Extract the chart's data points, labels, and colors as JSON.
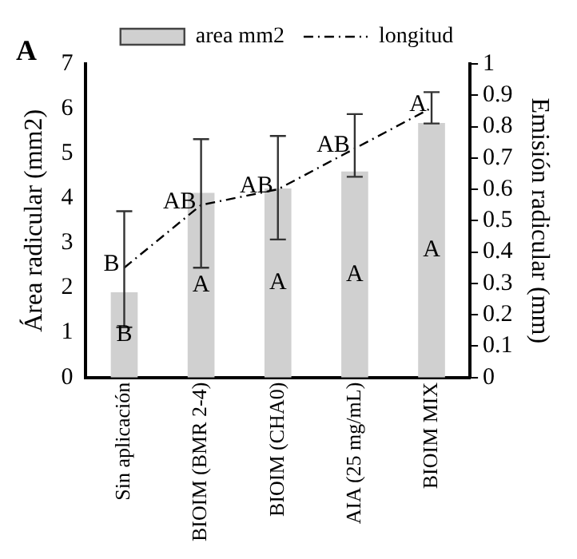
{
  "chart_data": {
    "type": "bar",
    "title": "A",
    "categories": [
      "Sin aplicación",
      "BIOIM (BMR 2-4)",
      "BIOIM (CHA0)",
      "AIA (25 mg/mL)",
      "BIOIM MIX"
    ],
    "ylabel": "Área radicular (mm2)",
    "y2label": "Emisión radicular (mm)",
    "ylim": [
      0,
      7
    ],
    "yticks": [
      0,
      1,
      2,
      3,
      4,
      5,
      6,
      7
    ],
    "y2lim": [
      0,
      1
    ],
    "y2ticks": [
      0,
      0.1,
      0.2,
      0.3,
      0.4,
      0.5,
      0.6,
      0.7,
      0.8,
      0.9,
      1
    ],
    "series": [
      {
        "name": "area mm2",
        "color": "#d0d0d0",
        "values": [
          1.9,
          4.12,
          4.22,
          4.6,
          5.68
        ],
        "value_labels": [
          "B",
          "A",
          "A",
          "A",
          "A"
        ]
      },
      {
        "name": "longitud",
        "type": "line",
        "axis": "y2",
        "color": "#000000",
        "line_style": "dashed",
        "marker": "none",
        "values": [
          0.35,
          0.55,
          0.6,
          0.73,
          0.86
        ],
        "value_labels": [
          "B",
          "AB",
          "AB",
          "AB",
          "A"
        ],
        "errors": [
          [
            0.16,
            0.53
          ],
          [
            0.35,
            0.76
          ],
          [
            0.44,
            0.77
          ],
          [
            0.64,
            0.84
          ],
          [
            0.81,
            0.91
          ]
        ]
      }
    ],
    "grid": false,
    "legend": "top"
  }
}
